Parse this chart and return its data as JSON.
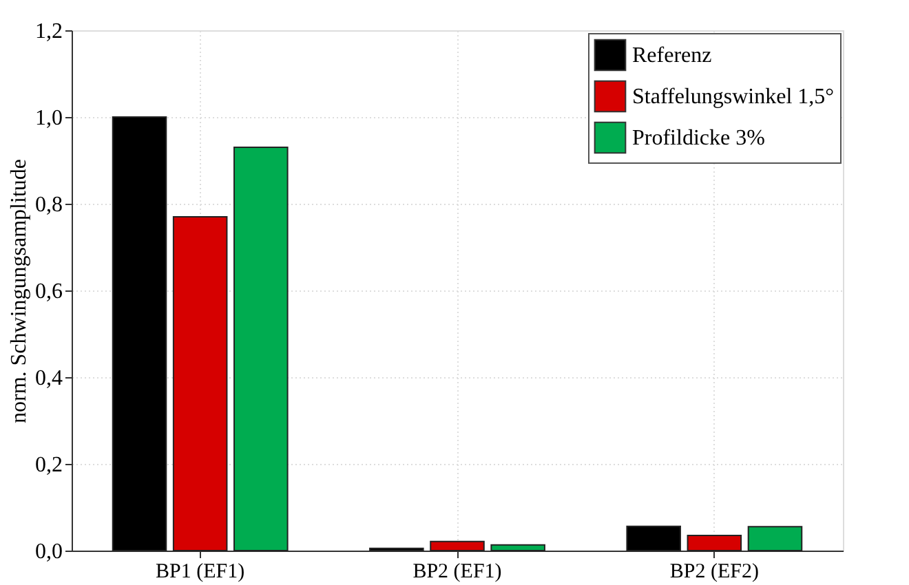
{
  "chart_data": {
    "type": "bar",
    "ylabel": "norm. Schwingungsamplitude",
    "categories": [
      "BP1 (EF1)",
      "BP2 (EF1)",
      "BP2 (EF2)"
    ],
    "series": [
      {
        "name": "Referenz",
        "color": "#000000",
        "values": [
          1.0,
          0.005,
          0.056
        ]
      },
      {
        "name": "Staffelungswinkel 1,5°",
        "color": "#d60000",
        "values": [
          0.77,
          0.021,
          0.035
        ]
      },
      {
        "name": "Profildicke 3%",
        "color": "#00ac50",
        "values": [
          0.93,
          0.013,
          0.055
        ]
      }
    ],
    "ylim": [
      0,
      1.2
    ],
    "yticks": [
      {
        "value": 0,
        "label": "0,0"
      },
      {
        "value": 0.2,
        "label": "0,2"
      },
      {
        "value": 0.4,
        "label": "0,4"
      },
      {
        "value": 0.6,
        "label": "0,6"
      },
      {
        "value": 0.8,
        "label": "0,8"
      },
      {
        "value": 1.0,
        "label": "1,0"
      },
      {
        "value": 1.2,
        "label": "1,2"
      }
    ],
    "grid": true,
    "legend": "top right"
  }
}
